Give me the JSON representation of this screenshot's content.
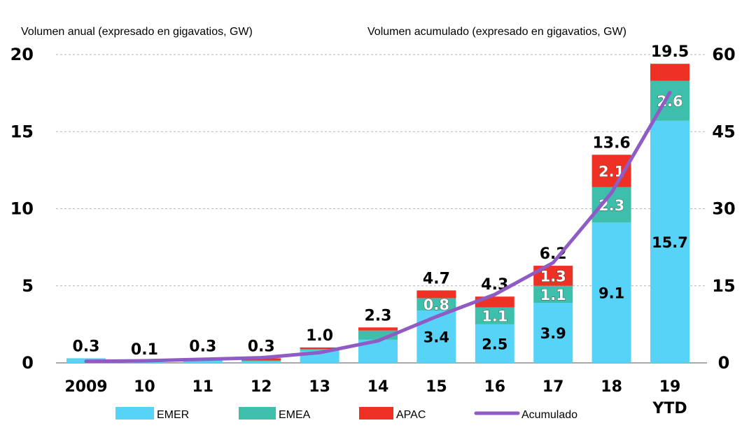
{
  "chart_data": {
    "type": "bar",
    "stacked": true,
    "left_axis_title": "Volumen anual (expresado en gigavatios, GW)",
    "right_axis_title": "Volumen acumulado (expresado en gigavatios, GW)",
    "categories": [
      "2009",
      "10",
      "11",
      "12",
      "13",
      "14",
      "15",
      "16",
      "17",
      "18",
      "19"
    ],
    "category_sublabels": [
      "",
      "",
      "",
      "",
      "",
      "",
      "",
      "",
      "",
      "",
      "YTD"
    ],
    "ylim_left": [
      0,
      20
    ],
    "yticks_left": [
      "0",
      "5",
      "10",
      "15",
      "20"
    ],
    "ylim_right": [
      0,
      60
    ],
    "yticks_right": [
      "0",
      "15",
      "30",
      "45",
      "60"
    ],
    "grid": true,
    "legend_position": "bottom",
    "series": [
      {
        "name": "EMER",
        "color": "#57d3f7",
        "values": [
          0.3,
          0.1,
          0.2,
          0.1,
          0.8,
          1.5,
          3.4,
          2.5,
          3.9,
          9.1,
          15.7
        ]
      },
      {
        "name": "EMEA",
        "color": "#3dbfab",
        "values": [
          0.0,
          0.0,
          0.05,
          0.05,
          0.1,
          0.6,
          0.8,
          1.1,
          1.1,
          2.3,
          2.6
        ]
      },
      {
        "name": "APAC",
        "color": "#ee3124",
        "values": [
          0.0,
          0.0,
          0.05,
          0.15,
          0.1,
          0.2,
          0.5,
          0.7,
          1.3,
          2.1,
          1.1
        ]
      }
    ],
    "segment_labels": [
      [
        "",
        "",
        "",
        "",
        "",
        "",
        "3.4",
        "2.5",
        "3.9",
        "9.1",
        "15.7"
      ],
      [
        "",
        "",
        "",
        "",
        "",
        "",
        "0.8",
        "1.1",
        "1.1",
        "2.3",
        "2.6"
      ],
      [
        "",
        "",
        "",
        "",
        "",
        "",
        "",
        "",
        "1.3",
        "2.1",
        ""
      ]
    ],
    "totals": [
      "0.3",
      "0.1",
      "0.3",
      "0.3",
      "1.0",
      "2.3",
      "4.7",
      "4.3",
      "6.2",
      "13.6",
      "19.5"
    ],
    "line": {
      "name": "Acumulado",
      "color": "#8e5cc4",
      "axis": "right",
      "values": [
        0.3,
        0.4,
        0.7,
        1.0,
        2.0,
        4.3,
        9.0,
        13.3,
        19.5,
        33.1,
        52.6
      ]
    }
  }
}
